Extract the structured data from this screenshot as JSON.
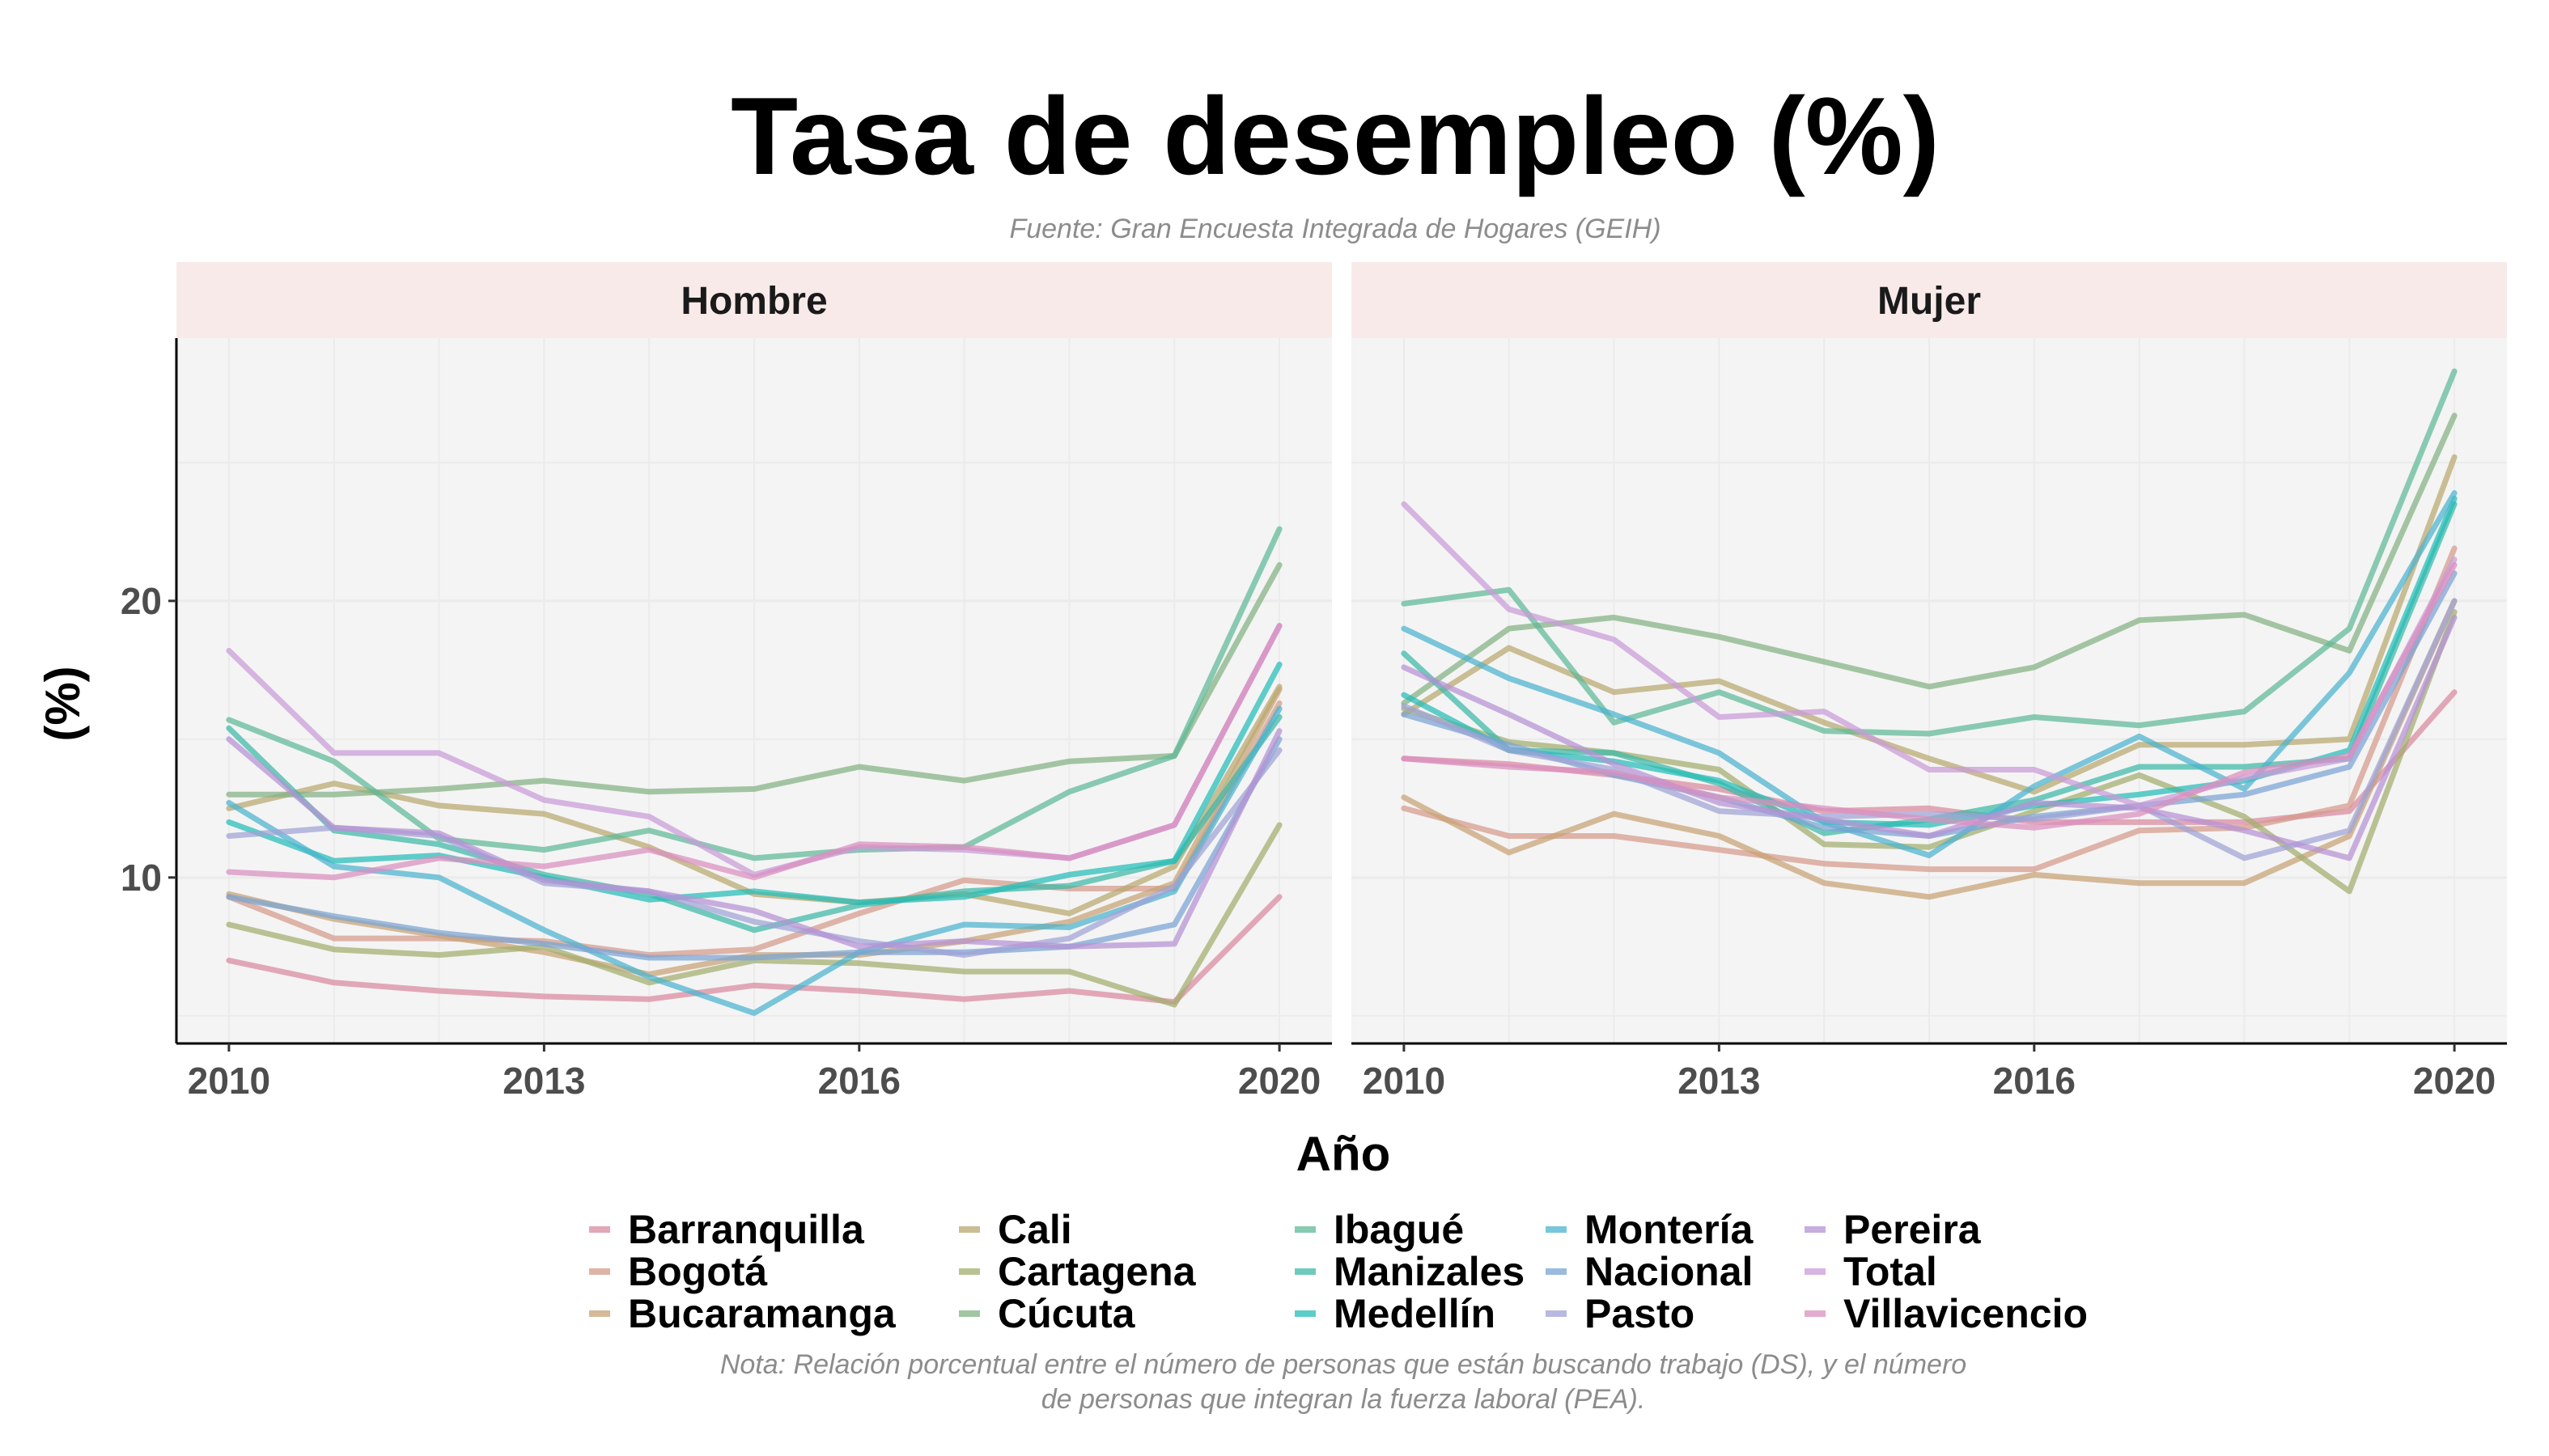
{
  "title": "Tasa de desempleo (%)",
  "subtitle": "Fuente: Gran Encuesta Integrada de Hogares (GEIH)",
  "caption_lines": [
    "Nota: Relación porcentual entre el número de personas que están buscando trabajo (DS), y el número",
    "de personas que integran la fuerza laboral (PEA)."
  ],
  "colors": {
    "Barranquilla": "#d9899f",
    "Bogotá": "#d69a8a",
    "Bucaramanga": "#c8a274",
    "Cali": "#b9a76f",
    "Cartagena": "#a2ad6d",
    "Cúcuta": "#83b283",
    "Ibagué": "#5eb897",
    "Manizales": "#3cb9a6",
    "Medellín": "#24bdb8",
    "Montería": "#4bb3cf",
    "Nacional": "#7aa3d4",
    "Pasto": "#9fa2d6",
    "Pereira": "#b592d4",
    "Total": "#c99bd8",
    "Villavicencio": "#d98fbf"
  },
  "chart_data": {
    "type": "line",
    "xlabel": "Año",
    "ylabel": "(%)",
    "x_ticks": [
      2010,
      2013,
      2016,
      2020
    ],
    "y_ticks": [
      10,
      20
    ],
    "xlim": [
      2009.5,
      2020.5
    ],
    "ylim": [
      4,
      29.5
    ],
    "grid": true,
    "legend_position": "bottom",
    "x": [
      2010,
      2011,
      2012,
      2013,
      2014,
      2015,
      2016,
      2017,
      2018,
      2019,
      2020
    ],
    "facets": [
      {
        "label": "Hombre",
        "series": [
          {
            "name": "Barranquilla",
            "values": [
              7.0,
              6.2,
              5.9,
              5.7,
              5.6,
              6.1,
              5.9,
              5.6,
              5.9,
              5.5,
              9.3
            ]
          },
          {
            "name": "Bogotá",
            "values": [
              9.3,
              7.8,
              7.8,
              7.7,
              7.2,
              7.4,
              8.7,
              9.9,
              9.6,
              9.6,
              16.3
            ]
          },
          {
            "name": "Bucaramanga",
            "values": [
              9.4,
              8.5,
              7.9,
              7.3,
              6.5,
              7.2,
              7.2,
              7.7,
              8.4,
              9.8,
              16.8
            ]
          },
          {
            "name": "Cali",
            "values": [
              12.5,
              13.4,
              12.6,
              12.3,
              11.1,
              9.4,
              9.1,
              9.4,
              8.7,
              10.4,
              16.9
            ]
          },
          {
            "name": "Cartagena",
            "values": [
              8.3,
              7.4,
              7.2,
              7.5,
              6.2,
              7.0,
              6.9,
              6.6,
              6.6,
              5.4,
              11.9
            ]
          },
          {
            "name": "Cúcuta",
            "values": [
              13.0,
              13.0,
              13.2,
              13.5,
              13.1,
              13.2,
              14.0,
              13.5,
              14.2,
              14.4,
              21.3
            ]
          },
          {
            "name": "Ibagué",
            "values": [
              15.7,
              14.2,
              11.4,
              11.0,
              11.7,
              10.7,
              11.0,
              11.1,
              13.1,
              14.4,
              22.6
            ]
          },
          {
            "name": "Manizales",
            "values": [
              15.4,
              11.7,
              11.2,
              10.1,
              9.4,
              8.1,
              9.0,
              9.5,
              9.7,
              10.6,
              15.8
            ]
          },
          {
            "name": "Medellín",
            "values": [
              12.0,
              10.6,
              10.8,
              10.0,
              9.2,
              9.5,
              9.1,
              9.3,
              10.1,
              10.6,
              17.7
            ]
          },
          {
            "name": "Montería",
            "values": [
              12.7,
              10.4,
              10.0,
              8.1,
              6.4,
              5.1,
              7.3,
              8.3,
              8.2,
              9.5,
              16.1
            ]
          },
          {
            "name": "Nacional",
            "values": [
              9.3,
              8.6,
              8.0,
              7.6,
              7.1,
              7.1,
              7.3,
              7.3,
              7.5,
              8.3,
              15.0
            ]
          },
          {
            "name": "Pasto",
            "values": [
              11.5,
              11.8,
              11.5,
              9.8,
              9.5,
              8.4,
              7.7,
              7.2,
              7.8,
              9.7,
              14.6
            ]
          },
          {
            "name": "Pereira",
            "values": [
              15.0,
              11.8,
              11.6,
              9.9,
              9.5,
              8.8,
              7.5,
              7.7,
              7.5,
              7.6,
              15.3
            ]
          },
          {
            "name": "Total",
            "values": [
              18.2,
              14.5,
              14.5,
              12.8,
              12.2,
              10.1,
              11.1,
              11.0,
              10.7,
              11.9,
              19.1
            ]
          },
          {
            "name": "Villavicencio",
            "values": [
              10.2,
              10.0,
              10.7,
              10.4,
              11.0,
              10.0,
              11.2,
              11.1,
              10.7,
              11.9,
              19.1
            ]
          }
        ]
      },
      {
        "label": "Mujer",
        "series": [
          {
            "name": "Barranquilla",
            "values": [
              14.3,
              14.1,
              13.7,
              13.2,
              12.4,
              12.5,
              12.0,
              12.0,
              12.0,
              12.4,
              16.7
            ]
          },
          {
            "name": "Bogotá",
            "values": [
              12.5,
              11.5,
              11.5,
              11.0,
              10.5,
              10.3,
              10.3,
              11.7,
              11.8,
              12.6,
              21.9
            ]
          },
          {
            "name": "Bucaramanga",
            "values": [
              12.9,
              10.9,
              12.3,
              11.5,
              9.8,
              9.3,
              10.1,
              9.8,
              9.8,
              11.5,
              20.0
            ]
          },
          {
            "name": "Cali",
            "values": [
              15.9,
              18.3,
              16.7,
              17.1,
              15.6,
              14.3,
              13.1,
              14.8,
              14.8,
              15.0,
              25.2
            ]
          },
          {
            "name": "Cartagena",
            "values": [
              16.1,
              14.9,
              14.5,
              13.9,
              11.2,
              11.1,
              12.4,
              13.7,
              12.2,
              9.5,
              19.6
            ]
          },
          {
            "name": "Cúcuta",
            "values": [
              16.3,
              19.0,
              19.4,
              18.7,
              17.8,
              16.9,
              17.6,
              19.3,
              19.5,
              18.2,
              26.7
            ]
          },
          {
            "name": "Ibagué",
            "values": [
              19.9,
              20.4,
              15.6,
              16.7,
              15.3,
              15.2,
              15.8,
              15.5,
              16.0,
              19.0,
              28.3
            ]
          },
          {
            "name": "Manizales",
            "values": [
              18.1,
              14.6,
              14.5,
              13.4,
              11.6,
              12.1,
              12.8,
              14.0,
              14.0,
              14.3,
              23.5
            ]
          },
          {
            "name": "Medellín",
            "values": [
              16.6,
              14.6,
              14.2,
              13.5,
              12.0,
              11.9,
              12.6,
              13.0,
              13.5,
              14.6,
              23.7
            ]
          },
          {
            "name": "Montería",
            "values": [
              19.0,
              17.2,
              15.9,
              14.5,
              12.0,
              10.8,
              13.3,
              15.1,
              13.2,
              17.4,
              23.9
            ]
          },
          {
            "name": "Nacional",
            "values": [
              15.9,
              14.8,
              13.7,
              12.9,
              11.8,
              11.5,
              12.2,
              12.6,
              13.0,
              14.0,
              21.0
            ]
          },
          {
            "name": "Pasto",
            "values": [
              16.2,
              14.6,
              13.9,
              12.4,
              12.2,
              12.3,
              12.1,
              12.6,
              10.7,
              11.7,
              20.0
            ]
          },
          {
            "name": "Pereira",
            "values": [
              17.6,
              15.9,
              14.1,
              12.7,
              12.1,
              11.5,
              12.7,
              12.5,
              11.7,
              10.7,
              19.4
            ]
          },
          {
            "name": "Total",
            "values": [
              23.5,
              19.7,
              18.6,
              15.8,
              16.0,
              13.9,
              13.9,
              12.6,
              13.6,
              14.3,
              21.5
            ]
          },
          {
            "name": "Villavicencio",
            "values": [
              14.3,
              14.0,
              13.8,
              12.9,
              12.5,
              12.1,
              11.8,
              12.3,
              13.8,
              14.4,
              21.3
            ]
          }
        ]
      }
    ]
  }
}
